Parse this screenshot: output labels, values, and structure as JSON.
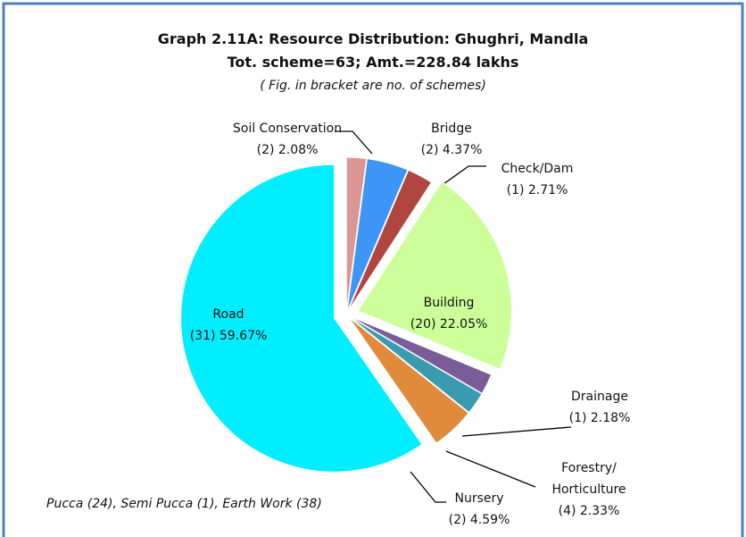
{
  "chart_data": {
    "type": "pie",
    "title": "Graph 2.11A: Resource Distribution: Ghughri, Mandla",
    "subtitle": "Tot. scheme=63; Amt.=228.84 lakhs",
    "note": "( Fig. in bracket are no. of schemes)",
    "annotation": "Pucca (24), Semi Pucca (1), Earth Work (38)",
    "categories": [
      "Soil Conservation",
      "Bridge",
      "Check/Dam",
      "Building",
      "Drainage",
      "Forestry/ Horticulture",
      "Nursery",
      "Road"
    ],
    "values": [
      2.08,
      4.37,
      2.71,
      22.05,
      2.18,
      2.33,
      4.59,
      59.67
    ],
    "value_labels": [
      "(2) 2.08%",
      "(2) 4.37%",
      "(1) 2.71%",
      "(20) 22.05%",
      "(1) 2.18%",
      "(4) 2.33%",
      "(2) 4.59%",
      "(31) 59.67%"
    ],
    "colors": [
      "#d99694",
      "#3d95f5",
      "#b0463f",
      "#ccff99",
      "#7a5c99",
      "#3a9bb0",
      "#e08a3c",
      "#00eeff"
    ]
  }
}
